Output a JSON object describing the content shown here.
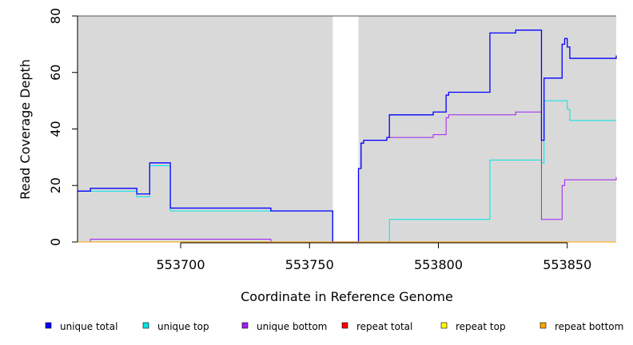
{
  "chart_data": {
    "type": "line",
    "xlabel": "Coordinate in Reference Genome",
    "ylabel": "Read Coverage Depth",
    "xlim": [
      553660,
      553869
    ],
    "ylim": [
      0,
      80
    ],
    "x_ticks": [
      553700,
      553750,
      553800,
      553850
    ],
    "y_ticks": [
      0,
      20,
      40,
      60,
      80
    ],
    "grid": false,
    "plot_background": "#d9d9d9",
    "uncovered_regions": [
      [
        553759,
        553769
      ]
    ],
    "legend_position": "bottom",
    "series": [
      {
        "name": "unique total",
        "color": "#0000ff",
        "points": [
          [
            553660,
            18
          ],
          [
            553665,
            18
          ],
          [
            553665,
            19
          ],
          [
            553683,
            19
          ],
          [
            553683,
            17
          ],
          [
            553688,
            17
          ],
          [
            553688,
            28
          ],
          [
            553696,
            28
          ],
          [
            553696,
            12
          ],
          [
            553735,
            12
          ],
          [
            553735,
            11
          ],
          [
            553759,
            11
          ],
          [
            553759,
            0
          ],
          [
            553769,
            0
          ],
          [
            553769,
            26
          ],
          [
            553770,
            26
          ],
          [
            553770,
            35
          ],
          [
            553771,
            35
          ],
          [
            553771,
            36
          ],
          [
            553780,
            36
          ],
          [
            553780,
            37
          ],
          [
            553781,
            37
          ],
          [
            553781,
            45
          ],
          [
            553798,
            45
          ],
          [
            553798,
            46
          ],
          [
            553803,
            46
          ],
          [
            553803,
            52
          ],
          [
            553804,
            52
          ],
          [
            553804,
            53
          ],
          [
            553820,
            53
          ],
          [
            553820,
            74
          ],
          [
            553830,
            74
          ],
          [
            553830,
            75
          ],
          [
            553840,
            75
          ],
          [
            553840,
            36
          ],
          [
            553841,
            36
          ],
          [
            553841,
            58
          ],
          [
            553848,
            58
          ],
          [
            553848,
            70
          ],
          [
            553849,
            70
          ],
          [
            553849,
            72
          ],
          [
            553850,
            72
          ],
          [
            553850,
            69
          ],
          [
            553851,
            69
          ],
          [
            553851,
            65
          ],
          [
            553869,
            65
          ],
          [
            553869,
            66
          ]
        ]
      },
      {
        "name": "unique top",
        "color": "#00e5e5",
        "points": [
          [
            553660,
            18
          ],
          [
            553683,
            18
          ],
          [
            553683,
            16
          ],
          [
            553688,
            16
          ],
          [
            553688,
            27
          ],
          [
            553696,
            27
          ],
          [
            553696,
            11
          ],
          [
            553759,
            11
          ],
          [
            553759,
            0
          ],
          [
            553781,
            0
          ],
          [
            553781,
            8
          ],
          [
            553820,
            8
          ],
          [
            553820,
            29
          ],
          [
            553840,
            29
          ],
          [
            553840,
            28
          ],
          [
            553841,
            28
          ],
          [
            553841,
            50
          ],
          [
            553850,
            50
          ],
          [
            553850,
            47
          ],
          [
            553851,
            47
          ],
          [
            553851,
            43
          ],
          [
            553869,
            43
          ]
        ]
      },
      {
        "name": "unique bottom",
        "color": "#a020f0",
        "points": [
          [
            553660,
            0
          ],
          [
            553665,
            0
          ],
          [
            553665,
            1
          ],
          [
            553735,
            1
          ],
          [
            553735,
            0
          ],
          [
            553769,
            0
          ],
          [
            553769,
            26
          ],
          [
            553770,
            26
          ],
          [
            553770,
            35
          ],
          [
            553771,
            35
          ],
          [
            553771,
            36
          ],
          [
            553780,
            36
          ],
          [
            553780,
            37
          ],
          [
            553798,
            37
          ],
          [
            553798,
            38
          ],
          [
            553803,
            38
          ],
          [
            553803,
            44
          ],
          [
            553804,
            44
          ],
          [
            553804,
            45
          ],
          [
            553830,
            45
          ],
          [
            553830,
            46
          ],
          [
            553840,
            46
          ],
          [
            553840,
            8
          ],
          [
            553848,
            8
          ],
          [
            553848,
            20
          ],
          [
            553849,
            20
          ],
          [
            553849,
            22
          ],
          [
            553869,
            22
          ],
          [
            553869,
            23
          ]
        ]
      },
      {
        "name": "repeat total",
        "color": "#ff0000",
        "points": [
          [
            553660,
            0
          ],
          [
            553869,
            0
          ]
        ]
      },
      {
        "name": "repeat top",
        "color": "#ffff00",
        "points": [
          [
            553660,
            0
          ],
          [
            553869,
            0
          ]
        ]
      },
      {
        "name": "repeat bottom",
        "color": "#ffa500",
        "points": [
          [
            553660,
            0
          ],
          [
            553869,
            0
          ]
        ]
      }
    ]
  }
}
